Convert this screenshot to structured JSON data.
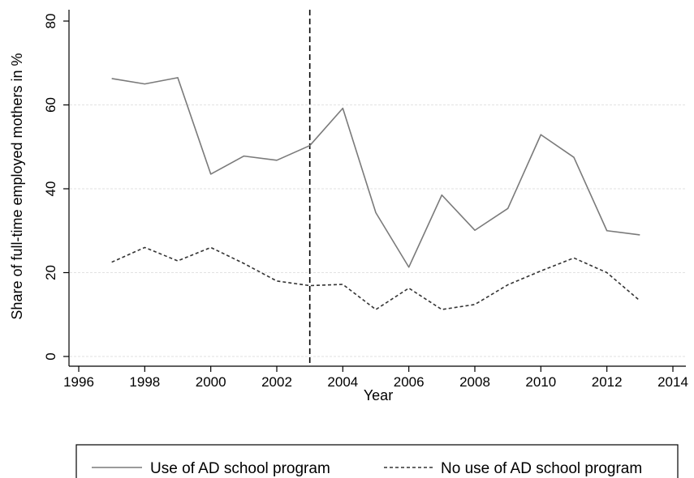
{
  "chart_data": {
    "type": "line",
    "xlabel": "Year",
    "ylabel": "Share of full-time employed mothers in %",
    "xlim": [
      1996,
      2014
    ],
    "ylim": [
      0,
      80
    ],
    "xticks": [
      "1996",
      "1998",
      "2000",
      "2002",
      "2004",
      "2006",
      "2008",
      "2010",
      "2012",
      "2014"
    ],
    "yticks": [
      "0",
      "20",
      "40",
      "60",
      "80"
    ],
    "grid": "horizontal",
    "reference_line_x": 2003,
    "legend_position": "bottom",
    "x": [
      1997,
      1998,
      1999,
      2000,
      2001,
      2002,
      2003,
      2004,
      2005,
      2006,
      2007,
      2008,
      2009,
      2010,
      2011,
      2012,
      2013
    ],
    "series": [
      {
        "name": "Use of AD school program",
        "style": "solid",
        "color": "#7a7a7a",
        "values": [
          66.3,
          65.0,
          66.5,
          43.5,
          47.8,
          46.8,
          50.3,
          59.2,
          34.3,
          21.3,
          38.5,
          30.1,
          35.3,
          52.9,
          47.5,
          30.0,
          29.0
        ]
      },
      {
        "name": "No use of AD school program",
        "style": "dashed",
        "color": "#333333",
        "values": [
          22.5,
          26.0,
          22.8,
          26.0,
          22.2,
          18.0,
          16.9,
          17.2,
          11.2,
          16.3,
          11.2,
          12.4,
          17.1,
          20.4,
          23.5,
          20.0,
          13.3
        ]
      }
    ]
  }
}
